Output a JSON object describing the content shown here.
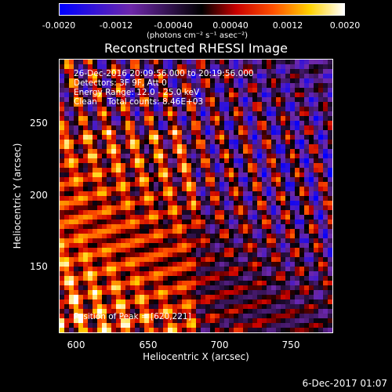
{
  "colorbar": {
    "ticks": [
      "-0.0020",
      "-0.0012",
      "-0.00040",
      "0.00040",
      "0.0012",
      "0.0020"
    ],
    "unit": "(photons cm⁻² s⁻¹ asec⁻²)"
  },
  "plot": {
    "title": "Reconstructed RHESSI Image",
    "info": [
      "26-Dec-2016 20:09:56.000 to 20:19:56.000",
      "Detectors: 3F 9F, Att 0",
      "Energy Range: 12.0 - 25.0 keV",
      "Clean    Total counts: 8.46E+03"
    ],
    "peak": "Position of Peak = [620,221]",
    "xlabel": "Heliocentric X (arcsec)",
    "ylabel": "Heliocentric Y (arcsec)",
    "xticks": [
      "600",
      "650",
      "700",
      "750"
    ],
    "yticks": [
      "250",
      "200",
      "150"
    ],
    "colors": {
      "low": "#0000ff",
      "mid": "#000000",
      "high": "#ffffff"
    }
  },
  "footer": {
    "date": "6-Dec-2017 01:07"
  }
}
